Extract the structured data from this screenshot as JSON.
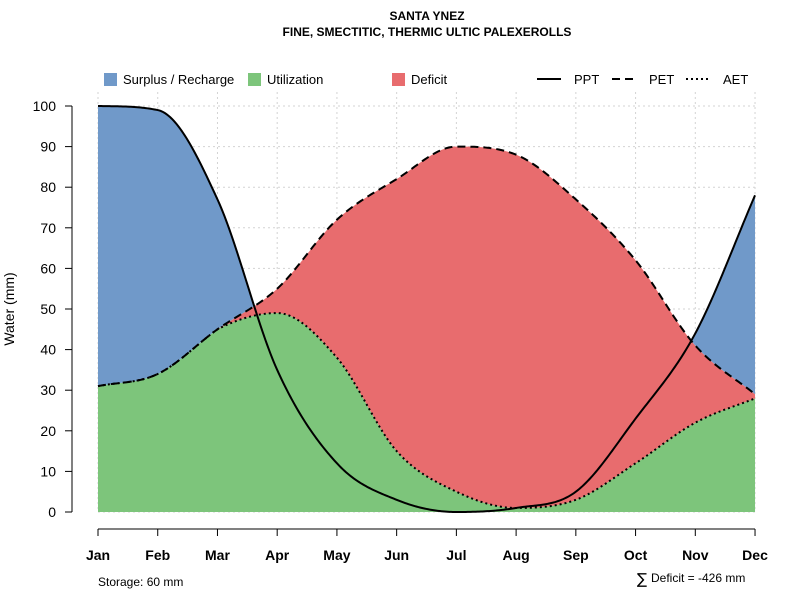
{
  "chart_data": {
    "type": "area",
    "title": "SANTA YNEZ",
    "subtitle": "FINE, SMECTITIC, THERMIC ULTIC PALEXEROLLS",
    "ylabel": "Water (mm)",
    "xlabel": "",
    "ylim": [
      0,
      100
    ],
    "yticks": [
      0,
      10,
      20,
      30,
      40,
      50,
      60,
      70,
      80,
      90,
      100
    ],
    "grid": true,
    "categories": [
      "Jan",
      "Feb",
      "Mar",
      "Apr",
      "May",
      "Jun",
      "Jul",
      "Aug",
      "Sep",
      "Oct",
      "Nov",
      "Dec"
    ],
    "series": [
      {
        "name": "PPT",
        "line_style": "solid",
        "values": [
          100,
          99,
          77,
          35,
          12,
          3,
          0,
          1,
          5,
          23,
          44,
          78
        ]
      },
      {
        "name": "PET",
        "line_style": "dashed",
        "values": [
          31,
          34,
          45,
          55,
          72,
          82,
          90,
          88,
          77,
          62,
          41,
          29
        ]
      },
      {
        "name": "AET",
        "line_style": "dotted",
        "values": [
          31,
          34,
          45,
          49,
          38,
          15,
          5,
          1,
          3,
          12,
          22,
          28
        ]
      }
    ],
    "legend": [
      {
        "label": "Surplus / Recharge",
        "kind": "fill",
        "color": "#7099c9"
      },
      {
        "label": "Utilization",
        "kind": "fill",
        "color": "#7dc57b"
      },
      {
        "label": "Deficit",
        "kind": "fill",
        "color": "#e86c6e"
      },
      {
        "label": "PPT",
        "kind": "line",
        "dash": "solid"
      },
      {
        "label": "PET",
        "kind": "line",
        "dash": "dashed"
      },
      {
        "label": "AET",
        "kind": "line",
        "dash": "dotted"
      }
    ],
    "legend_position": "top",
    "annotations": {
      "storage": "Storage: 60 mm",
      "deficit_symbol": "∑",
      "deficit": "Deficit = -426 mm"
    },
    "colors": {
      "surplus": "#7099c9",
      "utilization": "#7dc57b",
      "deficit": "#e86c6e",
      "grid": "#d3d3d3",
      "line": "#000000"
    }
  }
}
